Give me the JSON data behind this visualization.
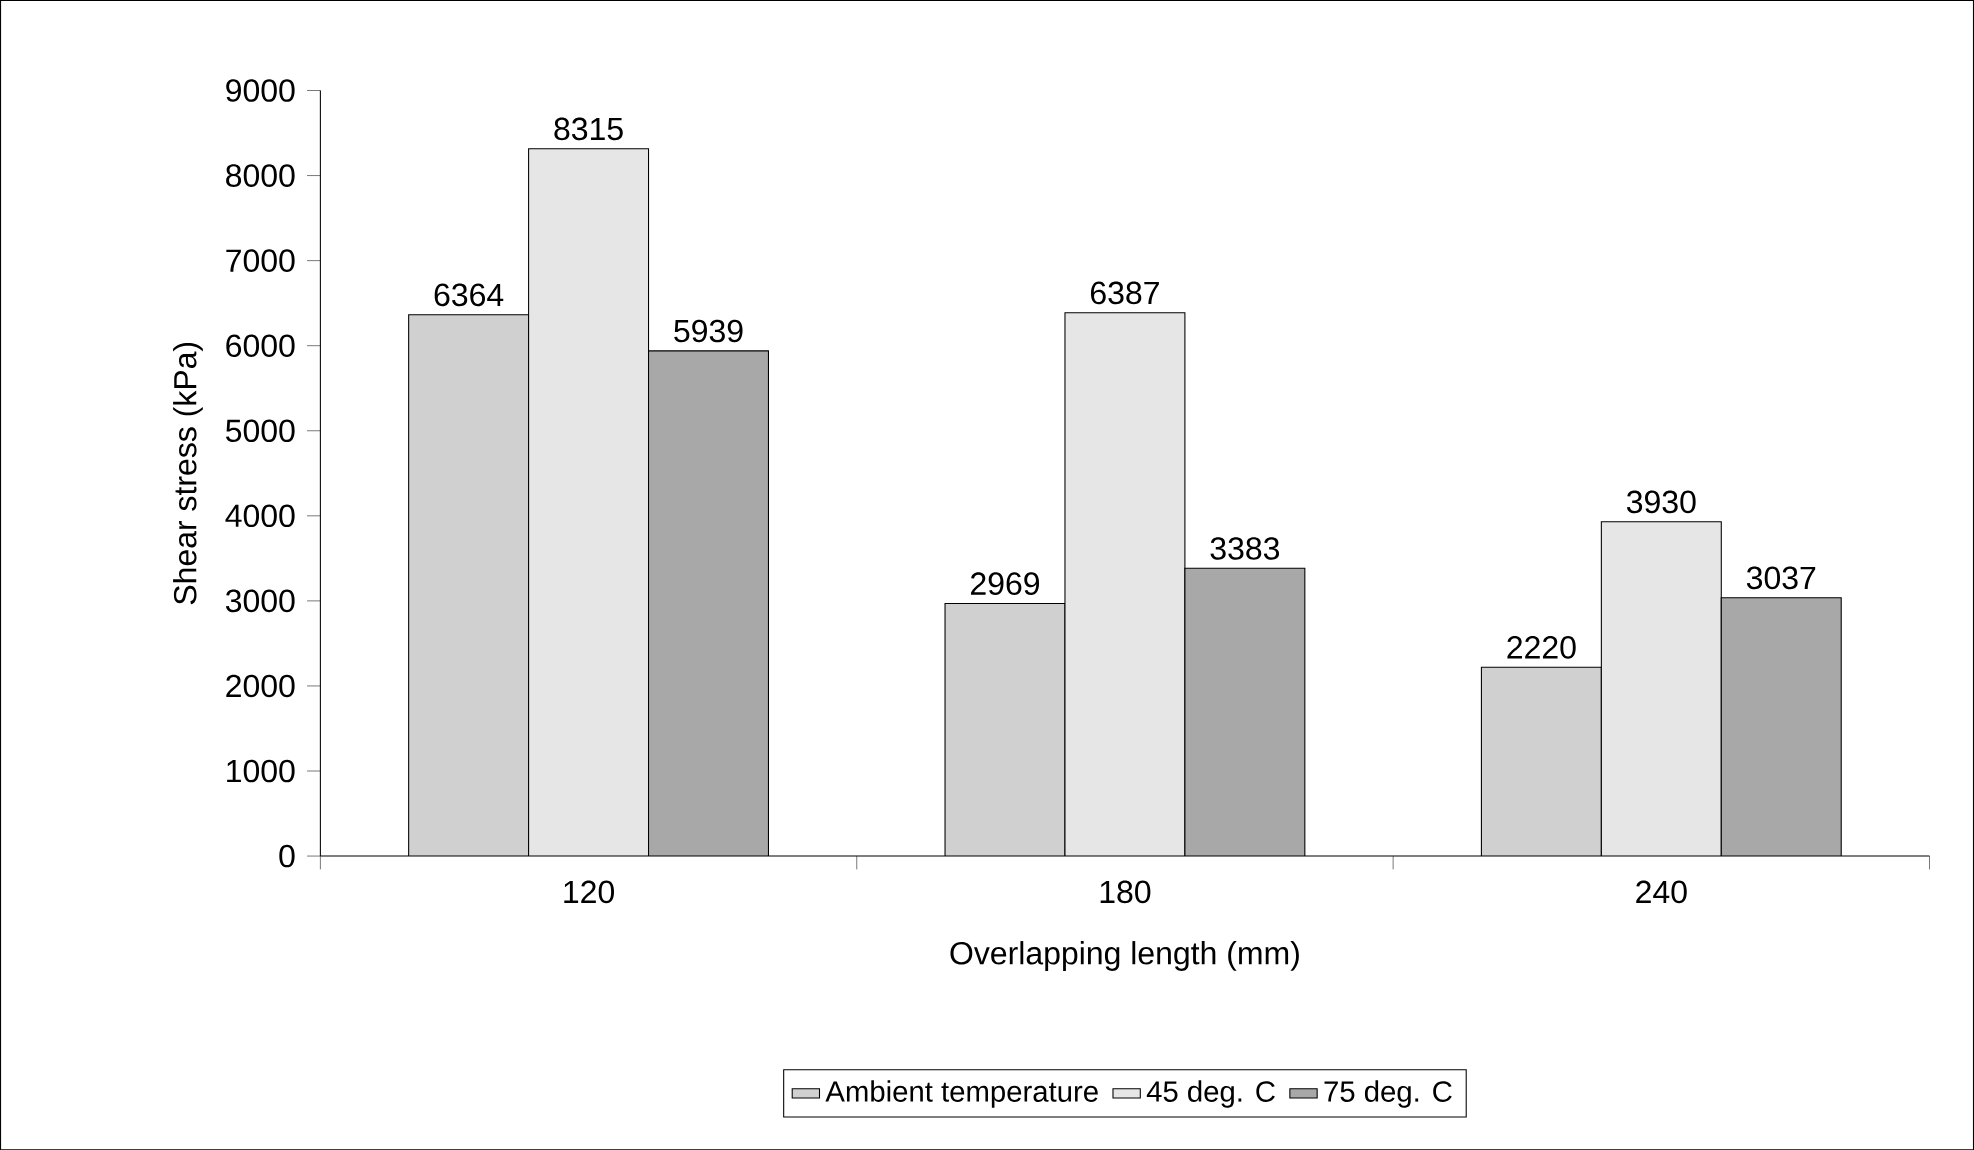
{
  "chart_data": {
    "type": "bar",
    "xlabel": "Overlapping length (mm)",
    "ylabel": "Shear stress (kPa)",
    "categories": [
      "120",
      "180",
      "240"
    ],
    "series": [
      {
        "name": "Ambient temperature",
        "color": "#d0d0d0",
        "values": [
          6364,
          2969,
          2220
        ]
      },
      {
        "name": "45 deg. C",
        "color": "#e6e6e6",
        "values": [
          8315,
          6387,
          3930
        ]
      },
      {
        "name": "75 deg. C",
        "color": "#a8a8a8",
        "values": [
          5939,
          3383,
          3037
        ]
      }
    ],
    "ylim": [
      0,
      9000
    ],
    "yticks": [
      0,
      1000,
      2000,
      3000,
      4000,
      5000,
      6000,
      7000,
      8000,
      9000
    ],
    "data_labels": true,
    "legend": "bottom",
    "grid": false
  }
}
